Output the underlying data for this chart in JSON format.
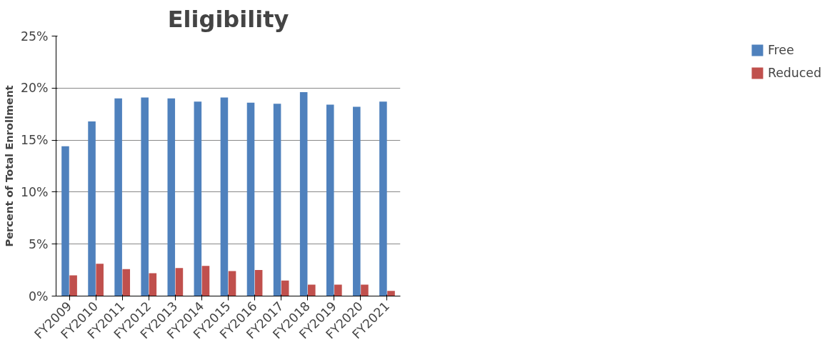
{
  "chart_data": {
    "type": "bar",
    "title": "Eligibility",
    "ylabel": "Percent of Total Enrollment",
    "categories": [
      "FY2009",
      "FY2010",
      "FY2011",
      "FY2012",
      "FY2013",
      "FY2014",
      "FY2015",
      "FY2016",
      "FY2017",
      "FY2018",
      "FY2019",
      "FY2020",
      "FY2021"
    ],
    "series": [
      {
        "name": "Free",
        "color": "#4f81bd",
        "values": [
          14.4,
          16.8,
          19.0,
          19.1,
          19.0,
          18.7,
          19.1,
          18.6,
          18.5,
          19.6,
          18.4,
          18.2,
          18.7
        ]
      },
      {
        "name": "Reduced",
        "color": "#c0504d",
        "values": [
          2.0,
          3.1,
          2.6,
          2.2,
          2.7,
          2.9,
          2.4,
          2.5,
          1.5,
          1.1,
          1.1,
          1.1,
          0.5
        ]
      }
    ],
    "ylim": [
      0,
      25
    ],
    "yticks": [
      {
        "value": 0,
        "label": "0%"
      },
      {
        "value": 5,
        "label": "5%"
      },
      {
        "value": 10,
        "label": "10%"
      },
      {
        "value": 15,
        "label": "15%"
      },
      {
        "value": 20,
        "label": "20%"
      },
      {
        "value": 25,
        "label": "25%"
      }
    ],
    "grid": "y",
    "legend": "right"
  }
}
